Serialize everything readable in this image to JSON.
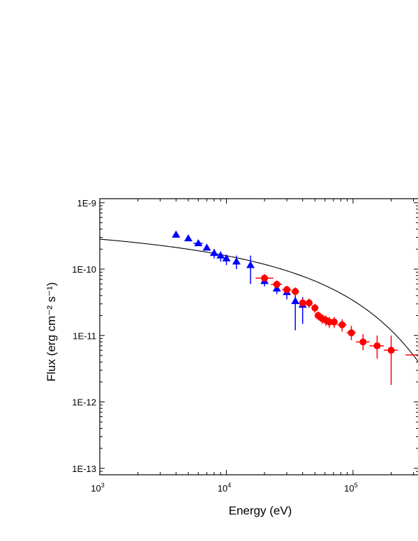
{
  "chart_data": {
    "type": "scatter",
    "xlabel": "Energy (eV)",
    "ylabel": "Flux (erg cm⁻² s⁻¹)",
    "xscale": "log",
    "yscale": "log",
    "xlim": [
      1000,
      330000
    ],
    "ylim": [
      8e-14,
      1.15e-09
    ],
    "x_ticks": [
      {
        "value": 1000,
        "label_base": "10",
        "label_exp": "3"
      },
      {
        "value": 10000,
        "label_base": "10",
        "label_exp": "4"
      },
      {
        "value": 100000,
        "label_base": "10",
        "label_exp": "5"
      }
    ],
    "y_ticks": [
      {
        "value": 1e-09,
        "label": "1E-9"
      },
      {
        "value": 1e-10,
        "label": "1E-10"
      },
      {
        "value": 1e-11,
        "label": "1E-11"
      },
      {
        "value": 1e-12,
        "label": "1E-12"
      },
      {
        "value": 1e-13,
        "label": "1E-13"
      }
    ],
    "grid": false,
    "series": [
      {
        "marker": "triangle",
        "color": "#0000ff",
        "points": [
          {
            "x": 4000,
            "y": 3.3e-10
          },
          {
            "x": 5000,
            "y": 2.9e-10
          },
          {
            "x": 6000,
            "y": 2.45e-10,
            "xerr": [
              5500,
              6500
            ]
          },
          {
            "x": 7000,
            "y": 2.1e-10
          },
          {
            "x": 8000,
            "y": 1.75e-10,
            "yerr": [
              1.45e-10,
              2e-10
            ]
          },
          {
            "x": 9000,
            "y": 1.6e-10,
            "yerr": [
              1.3e-10,
              1.85e-10
            ]
          },
          {
            "x": 10000,
            "y": 1.45e-10,
            "yerr": [
              1.15e-10,
              1.65e-10
            ]
          },
          {
            "x": 12000,
            "y": 1.3e-10,
            "yerr": [
              1e-10,
              1.6e-10
            ]
          },
          {
            "x": 15500,
            "y": 1.15e-10,
            "yerr": [
              6e-11,
              1.6e-10
            ]
          },
          {
            "x": 20000,
            "y": 6.6e-11,
            "yerr": [
              5.5e-11,
              8e-11
            ]
          },
          {
            "x": 25000,
            "y": 5.1e-11,
            "yerr": [
              4.2e-11,
              6.2e-11
            ]
          },
          {
            "x": 30000,
            "y": 4.5e-11,
            "yerr": [
              3.5e-11,
              5.5e-11
            ]
          },
          {
            "x": 35000,
            "y": 3.3e-11,
            "yerr": [
              1.2e-11,
              4.2e-11
            ]
          },
          {
            "x": 40000,
            "y": 2.9e-11,
            "yerr": [
              1.5e-11,
              3.8e-11
            ]
          }
        ]
      },
      {
        "marker": "circle",
        "color": "#ff0000",
        "points": [
          {
            "x": 20000,
            "y": 7.3e-11,
            "xerr": [
              17000,
              23500
            ],
            "yerr": [
              6.3e-11,
              8.4e-11
            ]
          },
          {
            "x": 25000,
            "y": 5.9e-11,
            "xerr": [
              22500,
              27500
            ],
            "yerr": [
              5.1e-11,
              6.7e-11
            ]
          },
          {
            "x": 30000,
            "y": 4.9e-11,
            "xerr": [
              27500,
              32500
            ],
            "yerr": [
              4.2e-11,
              5.6e-11
            ]
          },
          {
            "x": 35000,
            "y": 4.6e-11,
            "xerr": [
              32500,
              37500
            ],
            "yerr": [
              3.9e-11,
              5.3e-11
            ]
          },
          {
            "x": 40000,
            "y": 3.1e-11,
            "xerr": [
              37500,
              42500
            ],
            "yerr": [
              2.6e-11,
              3.6e-11
            ]
          },
          {
            "x": 45000,
            "y": 3.1e-11,
            "xerr": [
              42500,
              47500
            ],
            "yerr": [
              2.6e-11,
              3.6e-11
            ]
          },
          {
            "x": 50000,
            "y": 2.6e-11,
            "xerr": [
              47500,
              52500
            ],
            "yerr": [
              2.2e-11,
              3e-11
            ]
          },
          {
            "x": 53000,
            "y": 2e-11,
            "xerr": [
              51000,
              55000
            ],
            "yerr": [
              1.7e-11,
              2.3e-11
            ]
          },
          {
            "x": 57000,
            "y": 1.8e-11,
            "xerr": [
              55000,
              59000
            ],
            "yerr": [
              1.5e-11,
              2.1e-11
            ]
          },
          {
            "x": 61000,
            "y": 1.7e-11,
            "xerr": [
              59000,
              63000
            ],
            "yerr": [
              1.4e-11,
              2e-11
            ]
          },
          {
            "x": 65000,
            "y": 1.6e-11,
            "xerr": [
              63000,
              67000
            ],
            "yerr": [
              1.3e-11,
              1.9e-11
            ]
          },
          {
            "x": 71000,
            "y": 1.6e-11,
            "xerr": [
              67000,
              75000
            ],
            "yerr": [
              1.3e-11,
              1.9e-11
            ]
          },
          {
            "x": 82000,
            "y": 1.45e-11,
            "xerr": [
              75000,
              89000
            ],
            "yerr": [
              1.15e-11,
              1.75e-11
            ]
          },
          {
            "x": 97000,
            "y": 1.1e-11,
            "xerr": [
              89000,
              105000
            ],
            "yerr": [
              8.5e-12,
              1.4e-11
            ]
          },
          {
            "x": 120000,
            "y": 8e-12,
            "xerr": [
              105000,
              135000
            ],
            "yerr": [
              6e-12,
              1.05e-11
            ]
          },
          {
            "x": 155000,
            "y": 7e-12,
            "xerr": [
              135000,
              175000
            ],
            "yerr": [
              4.5e-12,
              1e-11
            ]
          },
          {
            "x": 200000,
            "y": 6e-12,
            "xerr": [
              175000,
              225000
            ],
            "yerr": [
              1.8e-12,
              1e-11
            ]
          },
          {
            "x": 330000,
            "y": 5.1e-12,
            "xerr": [
              260000,
              330000
            ]
          }
        ]
      }
    ],
    "model_curve": {
      "color": "#000000",
      "form": "F = 4.5e-10 * exp(-(x/89000)^0.8) / (1 + (x/4500)^0.4)",
      "norm": 4.5e-10,
      "cutoff": 89000,
      "cutoff_index": 0.8,
      "break": 4500,
      "break_index": 0.4
    }
  }
}
